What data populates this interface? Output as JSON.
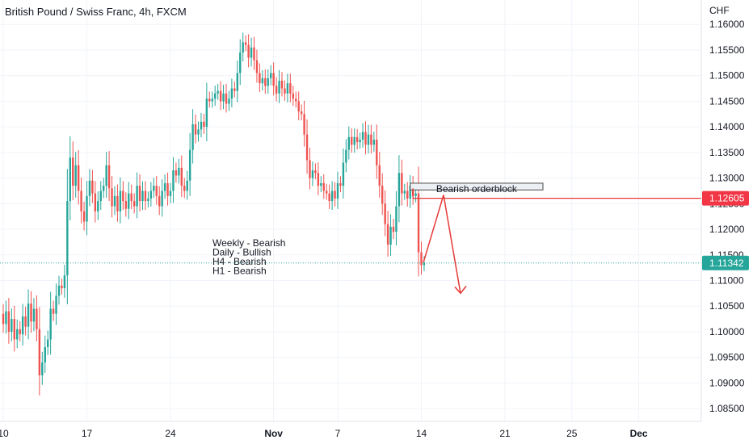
{
  "title": "British Pound / Swiss Franc, 4h, FXCM",
  "currency": "CHF",
  "colors": {
    "up": "#26a69a",
    "down": "#ef5350",
    "grid": "#f0f3fa",
    "axis_text": "#131722",
    "annotation": "#e53935",
    "price_tag_red": "#f23645",
    "price_tag_green": "#26a69a"
  },
  "price_tags": [
    {
      "value": "1.12605",
      "price": 1.12605,
      "color": "red"
    },
    {
      "value": "1.11342",
      "price": 1.11342,
      "color": "green"
    }
  ],
  "annotations": {
    "orderblock_label": "Bearish orderblock",
    "bias_lines": [
      "Weekly - Bearish",
      "Daily - Bullish",
      "H4 - Bearish",
      "H1 - Bearish"
    ]
  },
  "chart_data": {
    "type": "candlestick",
    "title": "British Pound / Swiss Franc, 4h, FXCM",
    "ylim": [
      1.0825,
      1.1635
    ],
    "y_ticks": [
      1.085,
      1.09,
      1.095,
      1.1,
      1.105,
      1.11,
      1.115,
      1.12,
      1.125,
      1.13,
      1.135,
      1.14,
      1.145,
      1.15,
      1.155,
      1.16
    ],
    "y_tick_labels": [
      "1.08500",
      "1.09000",
      "1.09500",
      "1.10000",
      "1.10500",
      "1.11000",
      "1.11500",
      "1.12000",
      "1.12500",
      "1.13000",
      "1.13500",
      "1.14000",
      "1.14500",
      "1.15000",
      "1.15500",
      "1.16000"
    ],
    "x_ticks": [
      {
        "label": "10",
        "bar": 0
      },
      {
        "label": "17",
        "bar": 30
      },
      {
        "label": "24",
        "bar": 60
      },
      {
        "label": "Nov",
        "bar": 97
      },
      {
        "label": "7",
        "bar": 120
      },
      {
        "label": "14",
        "bar": 150
      },
      {
        "label": "21",
        "bar": 180
      },
      {
        "label": "25",
        "bar": 204
      },
      {
        "label": "Dec",
        "bar": 228
      }
    ],
    "closes": [
      1.1015,
      1.104,
      1.1,
      1.1025,
      1.0985,
      1.1005,
      1.0995,
      1.103,
      1.101,
      1.1055,
      1.102,
      1.1045,
      1.1005,
      1.0915,
      1.094,
      1.097,
      1.0985,
      1.1045,
      1.1035,
      1.107,
      1.109,
      1.1085,
      1.111,
      1.1255,
      1.134,
      1.1285,
      1.1325,
      1.1275,
      1.1235,
      1.1215,
      1.1265,
      1.1295,
      1.127,
      1.1235,
      1.1255,
      1.1275,
      1.1285,
      1.1325,
      1.128,
      1.1245,
      1.1265,
      1.1235,
      1.1275,
      1.1255,
      1.124,
      1.127,
      1.1255,
      1.1245,
      1.1285,
      1.1255,
      1.1275,
      1.1255,
      1.126,
      1.1275,
      1.1285,
      1.1265,
      1.1245,
      1.1275,
      1.129,
      1.1265,
      1.1275,
      1.1315,
      1.1305,
      1.132,
      1.1285,
      1.1275,
      1.1295,
      1.1355,
      1.1405,
      1.1385,
      1.1395,
      1.141,
      1.14,
      1.1455,
      1.145,
      1.1455,
      1.1465,
      1.147,
      1.145,
      1.1465,
      1.1445,
      1.1455,
      1.1475,
      1.147,
      1.1505,
      1.1545,
      1.1565,
      1.156,
      1.1535,
      1.1555,
      1.153,
      1.1505,
      1.1485,
      1.1495,
      1.148,
      1.1495,
      1.1505,
      1.148,
      1.1465,
      1.149,
      1.1475,
      1.1465,
      1.1485,
      1.1465,
      1.1455,
      1.145,
      1.143,
      1.1425,
      1.1385,
      1.1335,
      1.13,
      1.1315,
      1.131,
      1.1285,
      1.129,
      1.1275,
      1.127,
      1.1255,
      1.1275,
      1.126,
      1.129,
      1.1285,
      1.133,
      1.1355,
      1.138,
      1.1365,
      1.138,
      1.137,
      1.1375,
      1.139,
      1.1365,
      1.1385,
      1.1365,
      1.1375,
      1.1325,
      1.1285,
      1.125,
      1.121,
      1.117,
      1.1205,
      1.1195,
      1.1245,
      1.131,
      1.127,
      1.1275,
      1.126,
      1.1285,
      1.1265,
      1.127,
      1.1155,
      1.113,
      1.1134
    ]
  }
}
